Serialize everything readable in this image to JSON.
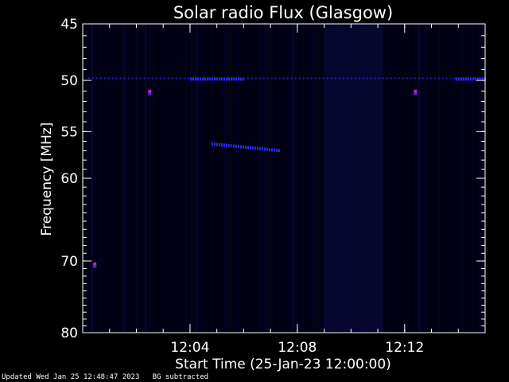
{
  "chart_data": {
    "type": "heatmap",
    "title": "Solar radio Flux (Glasgow)",
    "xlabel": "Start Time (25-Jan-23 12:00:00)",
    "ylabel": "Frequency [MHz]",
    "x_unit": "minutes after 12:00:00",
    "xlim": [
      0,
      15
    ],
    "ylim": [
      80,
      45
    ],
    "y_scale": "log",
    "x_ticks": [
      {
        "value": 4,
        "label": "12:04"
      },
      {
        "value": 8,
        "label": "12:08"
      },
      {
        "value": 12,
        "label": "12:12"
      }
    ],
    "y_ticks": [
      {
        "value": 45,
        "label": "45"
      },
      {
        "value": 50,
        "label": "50"
      },
      {
        "value": 55,
        "label": "55"
      },
      {
        "value": 60,
        "label": "60"
      },
      {
        "value": 70,
        "label": "70"
      },
      {
        "value": 80,
        "label": "80"
      }
    ],
    "background_color": "#000010",
    "emission_color": "#2a2aff",
    "hot_color": "#c020a0",
    "bands": [
      {
        "name": "",
        "t_start": 0.2,
        "t_end": 15,
        "f_start": 49.8,
        "f_end": 49.8
      },
      {
        "name": "",
        "t_start": 4.0,
        "t_end": 6.0,
        "f_start": 49.8,
        "f_end": 49.8
      },
      {
        "name": "",
        "t_start": 4.8,
        "t_end": 7.3,
        "f_start": 56.2,
        "f_end": 56.9
      },
      {
        "name": "",
        "t_start": 13.9,
        "t_end": 15,
        "f_start": 49.8,
        "f_end": 49.8
      }
    ],
    "spots": [
      {
        "t": 0.45,
        "f": 70.5
      },
      {
        "t": 2.5,
        "f": 51.1
      },
      {
        "t": 12.4,
        "f": 51.1
      }
    ],
    "dark_columns": [
      {
        "t_start": 9.0,
        "t_end": 11.2
      }
    ]
  },
  "footer": {
    "updated": "Updated Wed Jan 25 12:48:47 2023",
    "note": "BG subtracted"
  }
}
